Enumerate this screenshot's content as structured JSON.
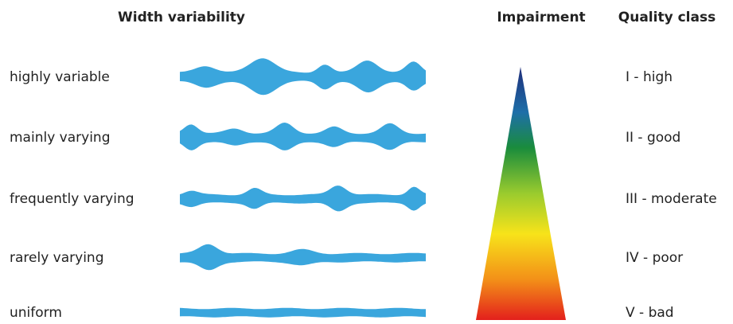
{
  "header": {
    "width_variability": "Width variability",
    "impairment": "Impairment",
    "quality_class": "Quality class"
  },
  "rows": [
    {
      "label": "highly variable",
      "quality": "I - high"
    },
    {
      "label": "mainly varying",
      "quality": "II - good"
    },
    {
      "label": "frequently varying",
      "quality": "III - moderate"
    },
    {
      "label": "rarely varying",
      "quality": "IV - poor"
    },
    {
      "label": "uniform",
      "quality": "V - bad"
    }
  ]
}
